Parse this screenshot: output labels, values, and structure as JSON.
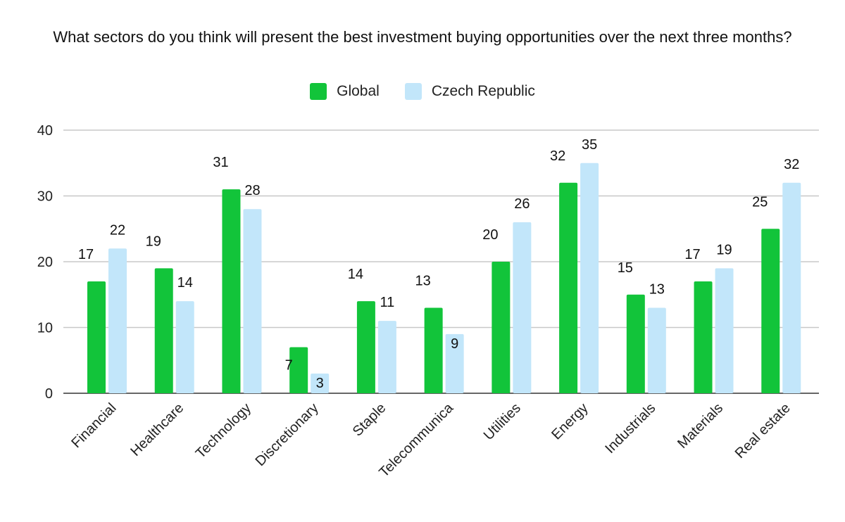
{
  "chart_data": {
    "type": "bar",
    "title": "What sectors do you think will present the best investment buying opportunities over the next three months?",
    "categories": [
      "Financial",
      "Healthcare",
      "Technology",
      "Discretionary",
      "Staple",
      "Telecommunica",
      "Utilities",
      "Energy",
      "Industrials",
      "Materials",
      "Real estate"
    ],
    "series": [
      {
        "name": "Global",
        "color": "#12c43a",
        "values": [
          17,
          19,
          31,
          7,
          14,
          13,
          20,
          32,
          15,
          17,
          25
        ]
      },
      {
        "name": "Czech Republic",
        "color": "#c2e6fa",
        "values": [
          22,
          14,
          28,
          3,
          11,
          9,
          26,
          35,
          13,
          19,
          32
        ]
      }
    ],
    "ylim": [
      0,
      40
    ],
    "yticks": [
      "0",
      "10",
      "20",
      "30",
      "40"
    ],
    "xlabel": "",
    "ylabel": "",
    "grid": true,
    "legend_position": "top"
  }
}
